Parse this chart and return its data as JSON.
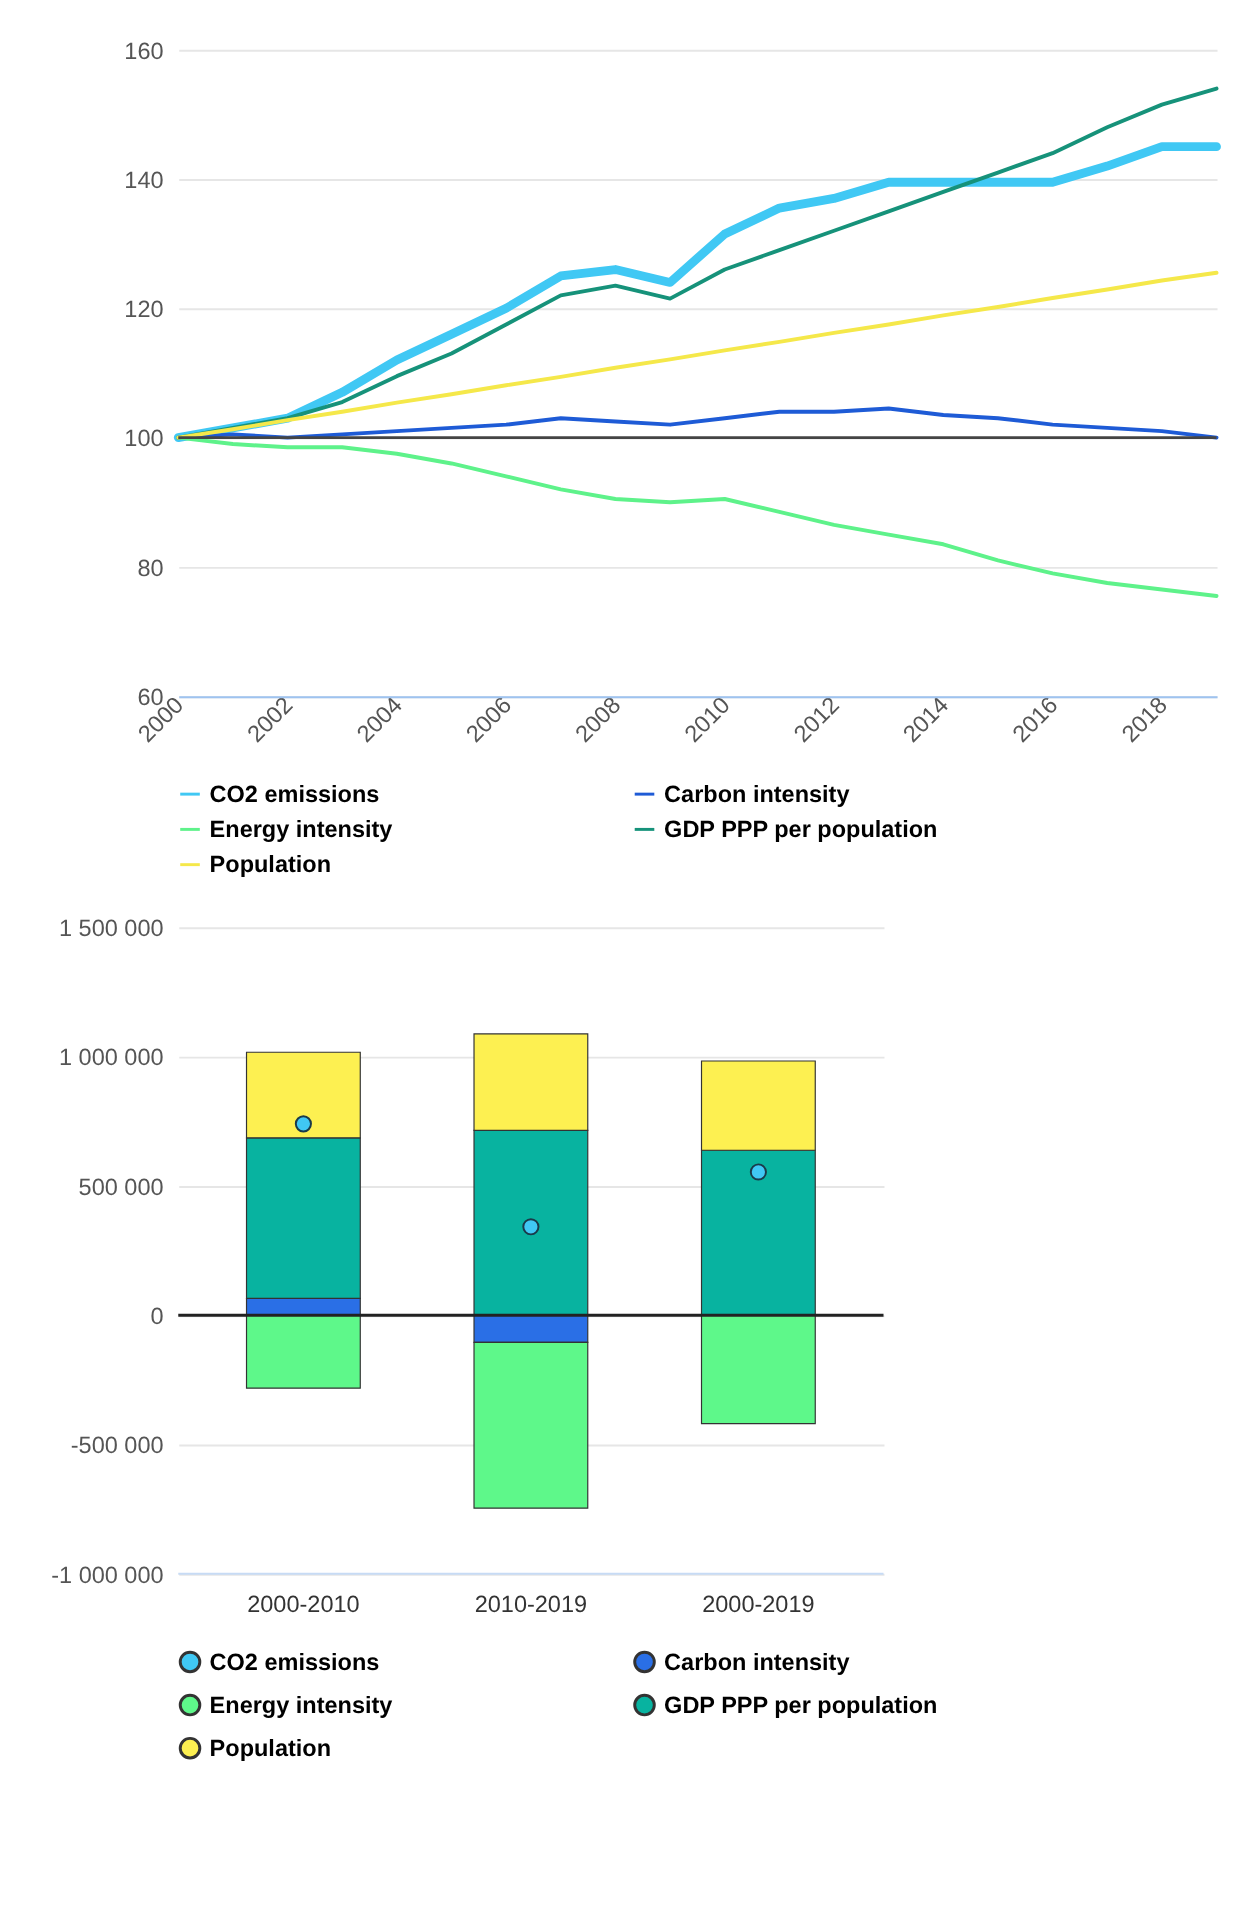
{
  "chart_data": [
    {
      "type": "line",
      "x": [
        2000,
        2001,
        2002,
        2003,
        2004,
        2005,
        2006,
        2007,
        2008,
        2009,
        2010,
        2011,
        2012,
        2013,
        2014,
        2015,
        2016,
        2017,
        2018,
        2019
      ],
      "xlim": [
        2000,
        2019
      ],
      "xticks": [
        2000,
        2002,
        2004,
        2006,
        2008,
        2010,
        2012,
        2014,
        2016,
        2018
      ],
      "ylim": [
        60,
        160
      ],
      "yticks": [
        60,
        80,
        100,
        120,
        140,
        160
      ],
      "grid": "y",
      "legend": "bottom",
      "line_style": "solid",
      "marker": "none",
      "series": [
        {
          "name": "CO2 emissions",
          "color": "#40c8f4",
          "values": [
            100,
            101.5,
            103,
            107,
            112,
            116,
            120,
            125,
            126,
            124,
            131.5,
            135.5,
            137,
            139.5,
            139.5,
            139.5,
            139.5,
            142,
            145,
            145
          ]
        },
        {
          "name": "Carbon intensity",
          "color": "#1e5bd6",
          "values": [
            100,
            100.5,
            100,
            100.5,
            101,
            101.5,
            102,
            103,
            102.5,
            102,
            103,
            104,
            104,
            104.5,
            103.5,
            103,
            102,
            101.5,
            101,
            100
          ]
        },
        {
          "name": "Energy intensity",
          "color": "#5ef28a",
          "values": [
            100,
            99,
            98.5,
            98.5,
            97.5,
            96,
            94,
            92,
            90.5,
            90,
            90.5,
            88.5,
            86.5,
            85,
            83.5,
            81,
            79,
            77.5,
            76.5,
            75.5
          ]
        },
        {
          "name": "GDP PPP per population",
          "color": "#16927a",
          "values": [
            100,
            101.5,
            103,
            105.5,
            109.5,
            113,
            117.5,
            122,
            123.5,
            121.5,
            126,
            129,
            132,
            135,
            138,
            141,
            144,
            148,
            151.5,
            154
          ]
        },
        {
          "name": "Population",
          "color": "#f5e84a",
          "values": [
            100,
            101.3,
            102.7,
            104,
            105.4,
            106.7,
            108.1,
            109.4,
            110.8,
            112.1,
            113.5,
            114.8,
            116.2,
            117.5,
            118.9,
            120.2,
            121.6,
            122.9,
            124.3,
            125.5
          ]
        }
      ],
      "ref_lines": [
        {
          "axis": "y",
          "value": 100,
          "color": "#444444"
        }
      ]
    },
    {
      "type": "bar",
      "stacked": true,
      "categories": [
        "2000-2010",
        "2010-2019",
        "2000-2019"
      ],
      "ylim": [
        -1000000,
        1500000
      ],
      "yticks": [
        {
          "value": -1000000,
          "label": "-1 000 000"
        },
        {
          "value": -500000,
          "label": "-500 000"
        },
        0,
        {
          "value": 500000,
          "label": "500 000"
        },
        {
          "value": 1000000,
          "label": "1 000 000"
        },
        {
          "value": 1500000,
          "label": "1 500 000"
        }
      ],
      "grid": "y",
      "legend": "bottom",
      "series": [
        {
          "name": "CO2 emissions",
          "type": "scatter",
          "color": "#40c8f4",
          "x": [
            "2000-2010",
            "2010-2019",
            "2000-2019"
          ],
          "values": [
            740000,
            342000,
            554000
          ]
        },
        {
          "name": "Carbon intensity",
          "color": "#2a6fe6",
          "values": [
            65000,
            -105000,
            null
          ]
        },
        {
          "name": "Energy intensity",
          "color": "#5ef88a",
          "values": [
            -282000,
            -641000,
            -419000
          ]
        },
        {
          "name": "GDP PPP per population",
          "color": "#08b3a0",
          "values": [
            621000,
            715000,
            638000
          ]
        },
        {
          "name": "Population",
          "color": "#fdf051",
          "values": [
            331000,
            373000,
            345000
          ]
        }
      ],
      "ref_lines": [
        {
          "axis": "y",
          "value": 0,
          "color": "#222222"
        }
      ]
    }
  ]
}
